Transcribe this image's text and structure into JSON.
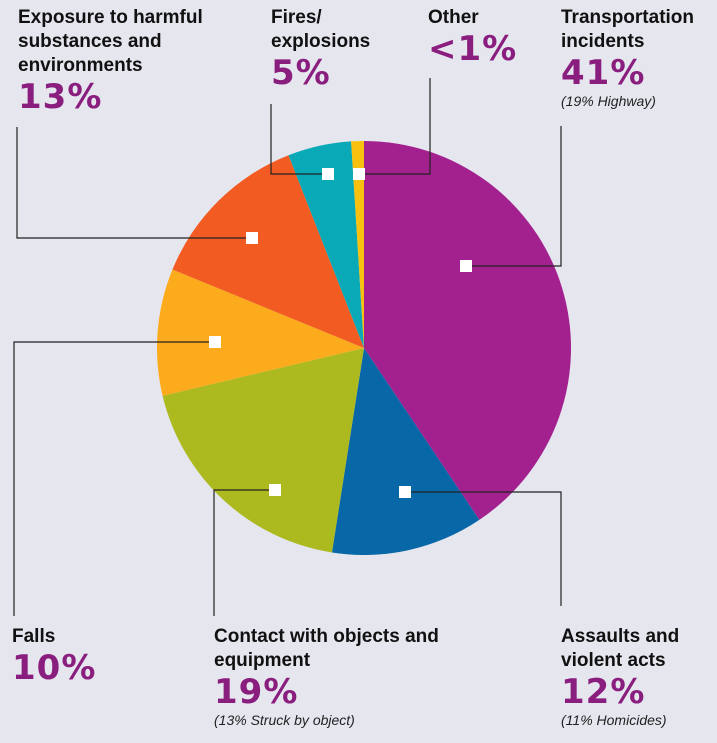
{
  "chart_data": {
    "type": "pie",
    "slices": [
      {
        "category": "Transportation incidents",
        "value": 41,
        "value_label": "41%",
        "note": "(19% Highway)",
        "color": "#a3218f"
      },
      {
        "category": "Assaults and violent acts",
        "value": 12,
        "value_label": "12%",
        "note": "(11% Homicides)",
        "color": "#0867a6"
      },
      {
        "category": "Contact with objects and equipment",
        "value": 19,
        "value_label": "19%",
        "note": "(13% Struck by object)",
        "color": "#adba1f"
      },
      {
        "category": "Falls",
        "value": 10,
        "value_label": "10%",
        "note": "",
        "color": "#fbab1b"
      },
      {
        "category": "Exposure to harmful substances and environments",
        "value": 13,
        "value_label": "13%",
        "note": "",
        "color": "#f25c22"
      },
      {
        "category": "Fires/ explosions",
        "value": 5,
        "value_label": "5%",
        "note": "",
        "color": "#0aa9b7"
      },
      {
        "category": "Other",
        "value": 1,
        "value_label": "<1%",
        "note": "",
        "color": "#f9c10f"
      }
    ]
  }
}
